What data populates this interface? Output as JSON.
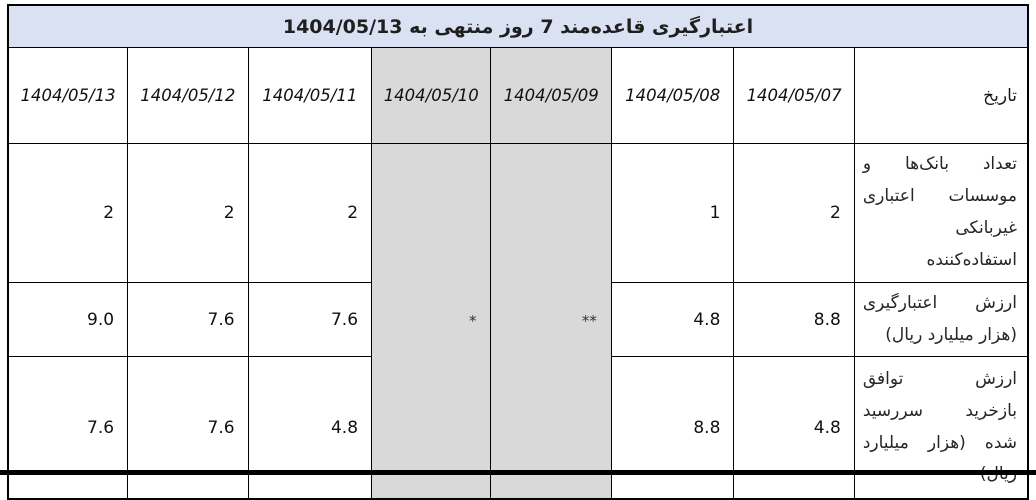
{
  "colors": {
    "title_bg": "#d9e1f2",
    "holiday_bg": "#d9d9d9",
    "border": "#000000",
    "page_bg": "#ffffff"
  },
  "table": {
    "title": "اعتبارگیری قاعده‌مند 7 روز منتهی به 1404/05/13",
    "date_column_label": "تاریخ",
    "dates": [
      "1404/05/07",
      "1404/05/08",
      "1404/05/09",
      "1404/05/10",
      "1404/05/11",
      "1404/05/12",
      "1404/05/13"
    ],
    "holidays": [
      {
        "date": "1404/05/09",
        "marker": "**"
      },
      {
        "date": "1404/05/10",
        "marker": "*"
      }
    ],
    "value_dates": [
      "1404/05/07",
      "1404/05/08",
      "1404/05/11",
      "1404/05/12",
      "1404/05/13"
    ],
    "rows": [
      {
        "label": "تعداد بانک‌ها و موسسات اعتباری غیربانکی استفاده‌کننده",
        "label_lines": [
          "تعداد بانک‌ها و",
          "موسسات اعتباری",
          "غیربانکی",
          "استفاده‌کننده"
        ],
        "values": [
          "2",
          "1",
          "2",
          "2",
          "2"
        ]
      },
      {
        "label": "ارزش اعتبارگیری (هزار میلیارد ریال)",
        "label_lines": [
          "ارزش اعتبارگیری",
          "(هزار میلیارد ریال)"
        ],
        "values": [
          "8.8",
          "4.8",
          "7.6",
          "7.6",
          "9.0"
        ]
      },
      {
        "label": "ارزش توافق بازخرید سررسید شده (هزار میلیارد ریال)",
        "label_lines": [
          "ارزش توافق",
          "بازخرید سررسید",
          "شده (هزار میلیارد",
          "ریال)"
        ],
        "values": [
          "4.8",
          "8.8",
          "4.8",
          "7.6",
          "7.6"
        ]
      }
    ]
  }
}
